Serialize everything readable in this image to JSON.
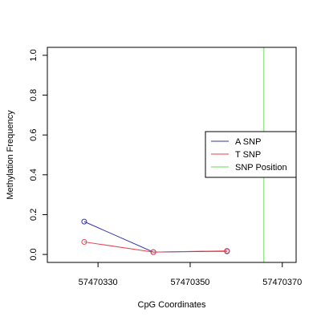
{
  "chart_data": {
    "type": "line",
    "xlabel": "CpG Coordinates",
    "ylabel": "Methylation Frequency",
    "xlim": [
      57470319,
      57470373
    ],
    "ylim": [
      -0.04,
      1.04
    ],
    "x_ticks": [
      57470330,
      57470350,
      57470370
    ],
    "y_ticks": [
      0.0,
      0.2,
      0.4,
      0.6,
      0.8,
      1.0
    ],
    "grid": false,
    "legend_position": "right",
    "series": [
      {
        "name": "A SNP",
        "color": "#3333aa",
        "points": [
          {
            "x": 57470327,
            "y": 0.165
          },
          {
            "x": 57470342,
            "y": 0.012
          },
          {
            "x": 57470358,
            "y": 0.016
          }
        ]
      },
      {
        "name": "T SNP",
        "color": "#e8404f",
        "points": [
          {
            "x": 57470327,
            "y": 0.063
          },
          {
            "x": 57470342,
            "y": 0.012
          },
          {
            "x": 57470358,
            "y": 0.018
          }
        ]
      }
    ],
    "snp_position": {
      "name": "SNP Position",
      "color": "#66dd55",
      "x": 57470366
    }
  }
}
